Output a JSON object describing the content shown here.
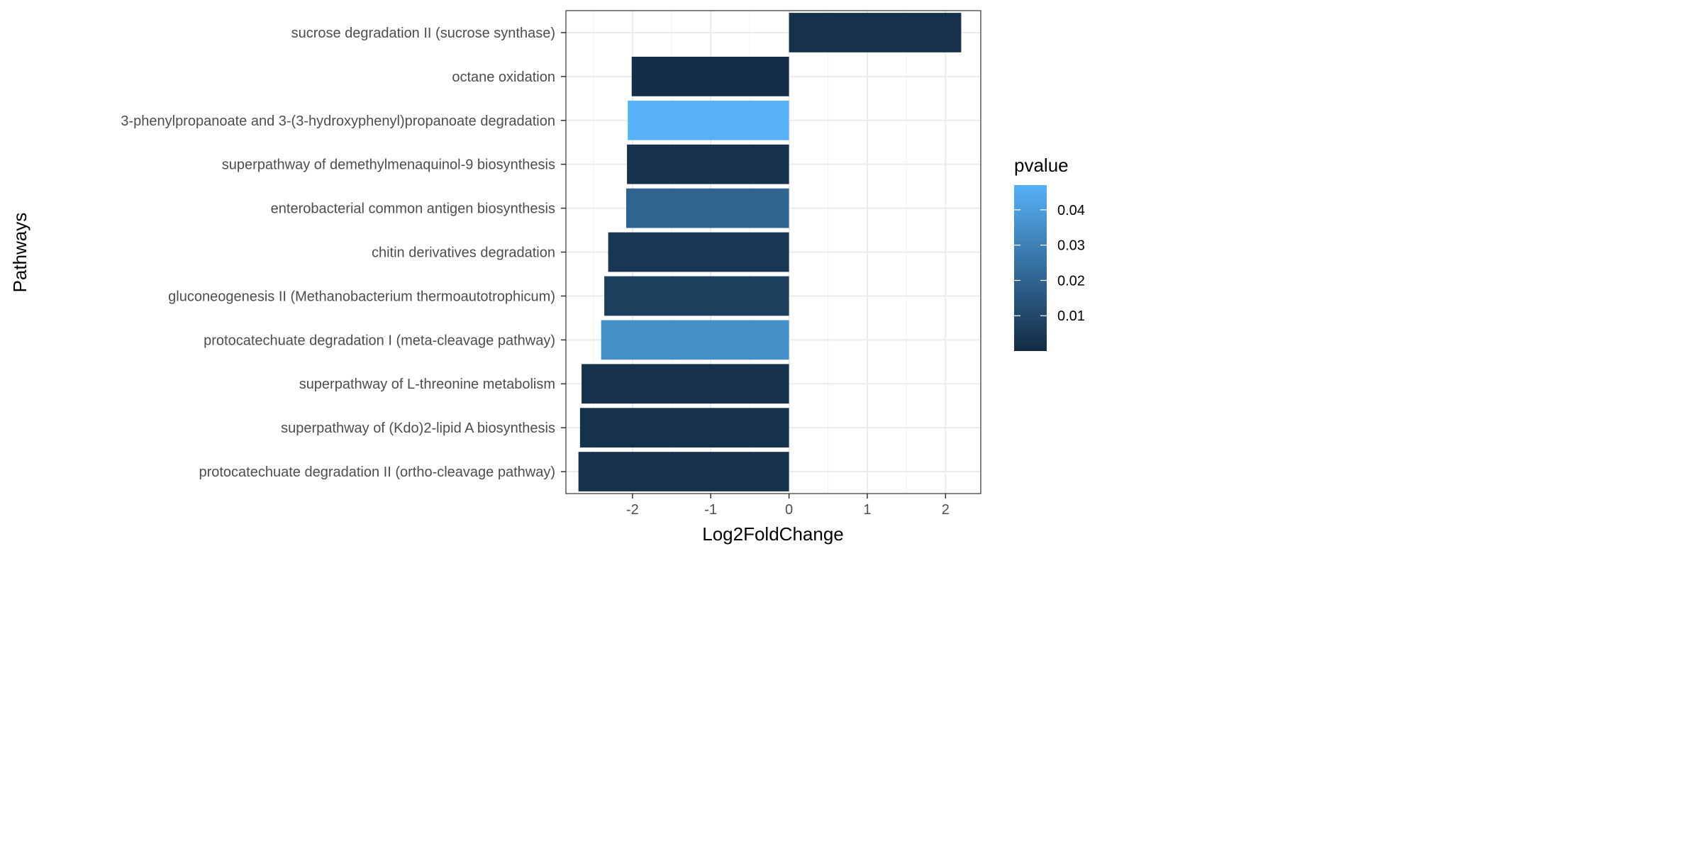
{
  "chart_data": {
    "type": "bar",
    "orientation": "horizontal",
    "xlabel": "Log2FoldChange",
    "ylabel": "Pathways",
    "xlim": [
      -2.85,
      2.45
    ],
    "x_ticks": [
      -2,
      -1,
      0,
      1,
      2
    ],
    "x_tick_labels": [
      "-2",
      "-1",
      "0",
      "1",
      "2"
    ],
    "grid": true,
    "categories": [
      "sucrose degradation II (sucrose synthase)",
      "octane oxidation",
      "3-phenylpropanoate and 3-(3-hydroxyphenyl)propanoate degradation",
      "superpathway of demethylmenaquinol-9 biosynthesis",
      "enterobacterial common antigen biosynthesis",
      "chitin derivatives degradation",
      "gluconeogenesis II (Methanobacterium thermoautotrophicum)",
      "protocatechuate degradation I (meta-cleavage pathway)",
      "superpathway of L-threonine metabolism",
      "superpathway of (Kdo)2-lipid A biosynthesis",
      "protocatechuate degradation II (ortho-cleavage pathway)"
    ],
    "values": [
      2.2,
      -2.01,
      -2.06,
      -2.07,
      -2.08,
      -2.31,
      -2.36,
      -2.4,
      -2.65,
      -2.67,
      -2.69
    ],
    "pvalues": [
      0.002,
      0.001,
      0.047,
      0.002,
      0.02,
      0.004,
      0.007,
      0.035,
      0.002,
      0.002,
      0.002
    ],
    "legend": {
      "title": "pvalue",
      "position": "right",
      "range": [
        0.0,
        0.047
      ],
      "ticks": [
        0.01,
        0.02,
        0.03,
        0.04
      ],
      "tick_labels": [
        "0.01",
        "0.02",
        "0.03",
        "0.04"
      ],
      "color_low": "#132B43",
      "color_high": "#56B1F7"
    }
  }
}
